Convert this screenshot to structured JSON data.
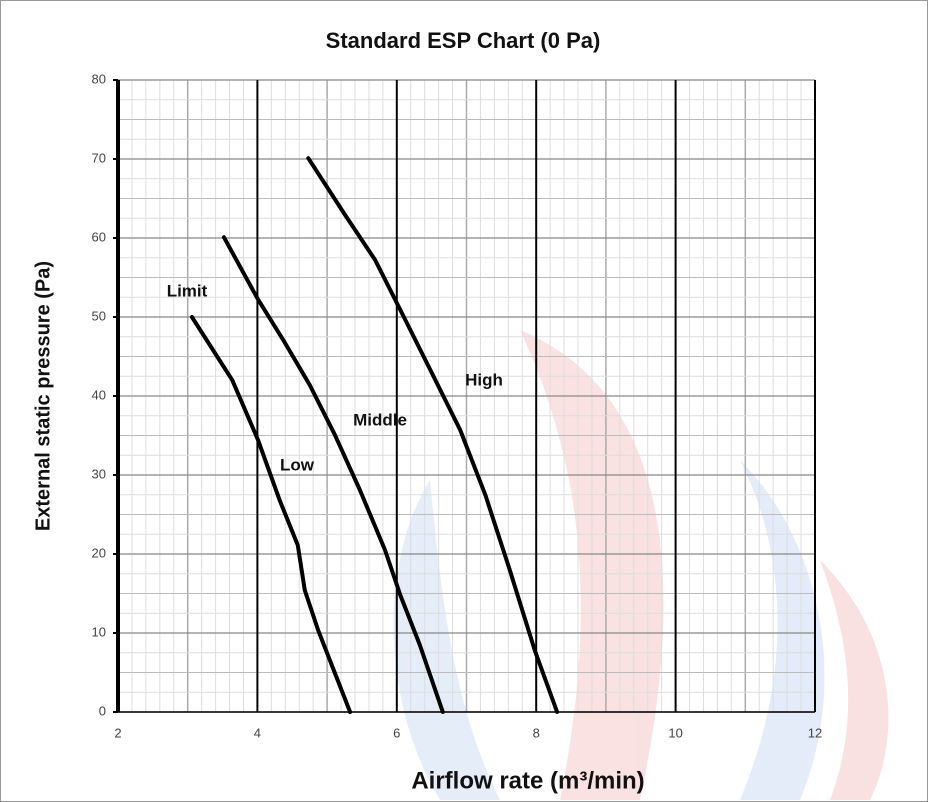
{
  "chart_data": {
    "type": "line",
    "title": "Standard ESP Chart (0 Pa)",
    "x_label": "Airflow rate (m³/min)",
    "y_label": "External static pressure (Pa)",
    "xlim": [
      2,
      12
    ],
    "xticks": [
      2,
      4,
      6,
      8,
      10,
      12
    ],
    "ylim": [
      0,
      80
    ],
    "yticks": [
      0,
      10,
      20,
      30,
      40,
      50,
      60,
      70,
      80
    ],
    "grid": true,
    "annotations": [
      "Limit",
      "Low",
      "Middle",
      "High"
    ],
    "series": [
      {
        "color": "#000000",
        "x": [
          3.06,
          3.64,
          4.01,
          4.32,
          4.58,
          4.68,
          4.87,
          5.33
        ],
        "values": [
          50,
          42,
          34.4,
          26.8,
          21.1,
          15.4,
          10.4,
          0
        ]
      },
      {
        "color": "#000000",
        "x": [
          3.52,
          4.01,
          4.37,
          4.75,
          5.11,
          5.47,
          5.83,
          6.05,
          6.33,
          6.66
        ],
        "values": [
          60.1,
          52.2,
          47.1,
          41.4,
          35.1,
          28.1,
          20.5,
          14.8,
          8.5,
          0
        ]
      },
      {
        "color": "#000000",
        "x": [
          4.73,
          5.26,
          5.69,
          6.05,
          6.48,
          6.91,
          7.27,
          7.62,
          7.98,
          8.3
        ],
        "values": [
          70.1,
          62.9,
          57.2,
          50.9,
          43.3,
          35.7,
          27.5,
          18,
          7.8,
          0
        ]
      }
    ]
  }
}
